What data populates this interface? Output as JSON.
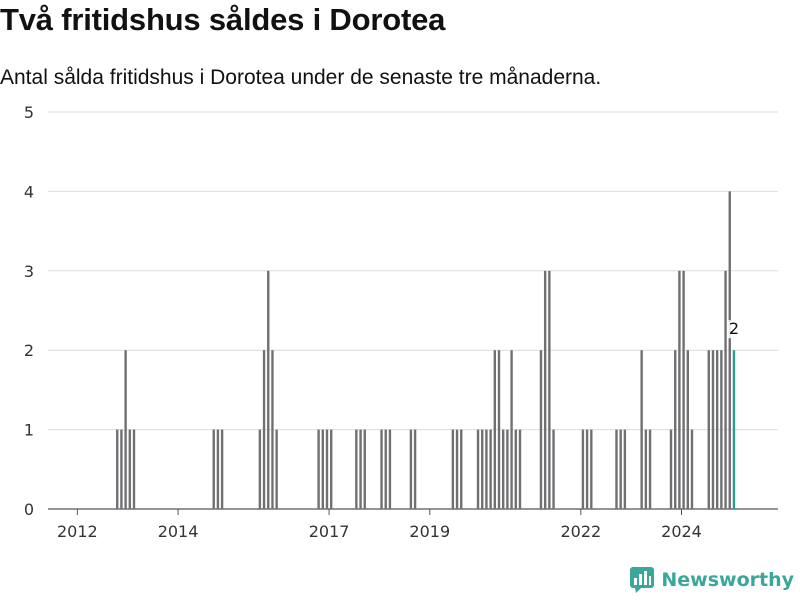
{
  "title": "Två fritidshus såldes i Dorotea",
  "subtitle": "Antal sålda fritidshus i Dorotea under de senaste tre månaderna.",
  "brand": {
    "name": "Newsworthy",
    "icon": "newsworthy-logo-icon",
    "color": "#3aa79a"
  },
  "colors": {
    "bar": "#707073",
    "highlight": "#2a9d8f",
    "grid": "#dcdcdc"
  },
  "chart_data": {
    "type": "bar",
    "title": "",
    "xlabel": "",
    "ylabel": "",
    "ylim": [
      0,
      5
    ],
    "yticks": [
      0,
      1,
      2,
      3,
      4,
      5
    ],
    "xlim": [
      "2011-06",
      "2025-12"
    ],
    "xticks": [
      "2012",
      "2014",
      "2017",
      "2019",
      "2022",
      "2024"
    ],
    "grid": true,
    "series": [
      {
        "values": [
          {
            "x": "2012-10",
            "y": 1
          },
          {
            "x": "2012-11",
            "y": 1
          },
          {
            "x": "2012-12",
            "y": 2
          },
          {
            "x": "2013-01",
            "y": 1
          },
          {
            "x": "2013-02",
            "y": 1
          },
          {
            "x": "2014-09",
            "y": 1
          },
          {
            "x": "2014-10",
            "y": 1
          },
          {
            "x": "2014-11",
            "y": 1
          },
          {
            "x": "2015-08",
            "y": 1
          },
          {
            "x": "2015-09",
            "y": 2
          },
          {
            "x": "2015-10",
            "y": 3
          },
          {
            "x": "2015-11",
            "y": 2
          },
          {
            "x": "2015-12",
            "y": 1
          },
          {
            "x": "2016-10",
            "y": 1
          },
          {
            "x": "2016-11",
            "y": 1
          },
          {
            "x": "2016-12",
            "y": 1
          },
          {
            "x": "2017-01",
            "y": 1
          },
          {
            "x": "2017-07",
            "y": 1
          },
          {
            "x": "2017-08",
            "y": 1
          },
          {
            "x": "2017-09",
            "y": 1
          },
          {
            "x": "2018-01",
            "y": 1
          },
          {
            "x": "2018-02",
            "y": 1
          },
          {
            "x": "2018-03",
            "y": 1
          },
          {
            "x": "2018-08",
            "y": 1
          },
          {
            "x": "2018-09",
            "y": 1
          },
          {
            "x": "2019-06",
            "y": 1
          },
          {
            "x": "2019-07",
            "y": 1
          },
          {
            "x": "2019-08",
            "y": 1
          },
          {
            "x": "2019-12",
            "y": 1
          },
          {
            "x": "2020-01",
            "y": 1
          },
          {
            "x": "2020-02",
            "y": 1
          },
          {
            "x": "2020-03",
            "y": 1
          },
          {
            "x": "2020-04",
            "y": 2
          },
          {
            "x": "2020-05",
            "y": 2
          },
          {
            "x": "2020-06",
            "y": 1
          },
          {
            "x": "2020-07",
            "y": 1
          },
          {
            "x": "2020-08",
            "y": 2
          },
          {
            "x": "2020-09",
            "y": 1
          },
          {
            "x": "2020-10",
            "y": 1
          },
          {
            "x": "2021-03",
            "y": 2
          },
          {
            "x": "2021-04",
            "y": 3
          },
          {
            "x": "2021-05",
            "y": 3
          },
          {
            "x": "2021-06",
            "y": 1
          },
          {
            "x": "2022-01",
            "y": 1
          },
          {
            "x": "2022-02",
            "y": 1
          },
          {
            "x": "2022-03",
            "y": 1
          },
          {
            "x": "2022-09",
            "y": 1
          },
          {
            "x": "2022-10",
            "y": 1
          },
          {
            "x": "2022-11",
            "y": 1
          },
          {
            "x": "2023-03",
            "y": 2
          },
          {
            "x": "2023-04",
            "y": 1
          },
          {
            "x": "2023-05",
            "y": 1
          },
          {
            "x": "2023-10",
            "y": 1
          },
          {
            "x": "2023-11",
            "y": 2
          },
          {
            "x": "2023-12",
            "y": 3
          },
          {
            "x": "2024-01",
            "y": 3
          },
          {
            "x": "2024-02",
            "y": 2
          },
          {
            "x": "2024-03",
            "y": 1
          },
          {
            "x": "2024-07",
            "y": 2
          },
          {
            "x": "2024-08",
            "y": 2
          },
          {
            "x": "2024-09",
            "y": 2
          },
          {
            "x": "2024-10",
            "y": 2
          },
          {
            "x": "2024-11",
            "y": 3
          },
          {
            "x": "2024-12",
            "y": 4
          },
          {
            "x": "2025-01",
            "y": 2
          }
        ]
      }
    ],
    "highlight": {
      "x": "2025-01",
      "y": 2,
      "label": "2"
    }
  }
}
